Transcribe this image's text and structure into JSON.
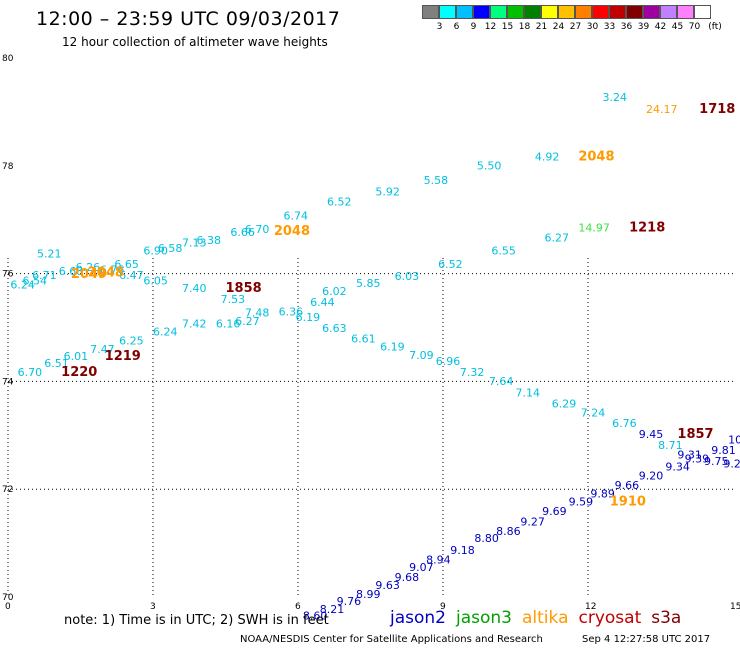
{
  "header": {
    "title": "12:00 – 23:59 UTC 09/03/2017",
    "subtitle": "12 hour collection of altimeter wave heights"
  },
  "colorbar": {
    "unit": "(ft)",
    "levels": [
      {
        "label": "",
        "color": "#808080"
      },
      {
        "label": "3",
        "color": "#00ffff"
      },
      {
        "label": "6",
        "color": "#00c0ff"
      },
      {
        "label": "9",
        "color": "#0000ff"
      },
      {
        "label": "12",
        "color": "#00ff80"
      },
      {
        "label": "15",
        "color": "#00c000"
      },
      {
        "label": "18",
        "color": "#008000"
      },
      {
        "label": "21",
        "color": "#ffff00"
      },
      {
        "label": "24",
        "color": "#ffc000"
      },
      {
        "label": "27",
        "color": "#ff8000"
      },
      {
        "label": "30",
        "color": "#ff0000"
      },
      {
        "label": "33",
        "color": "#c00000"
      },
      {
        "label": "36",
        "color": "#800000"
      },
      {
        "label": "39",
        "color": "#a000a0"
      },
      {
        "label": "42",
        "color": "#c080ff"
      },
      {
        "label": "45",
        "color": "#ff80ff"
      },
      {
        "label": "70",
        "color": "#ffffff"
      }
    ]
  },
  "axes": {
    "x_ticks": [
      "0",
      "3",
      "6",
      "9",
      "12",
      "15"
    ],
    "y_ticks": [
      "80",
      "78",
      "76",
      "74",
      "72",
      "70"
    ],
    "y_ticks_flipped": [
      {
        "label": "76",
        "value": 78
      }
    ],
    "lon_range": [
      0,
      15
    ],
    "lat_range": [
      70,
      80
    ]
  },
  "colors": {
    "jason2": "#0000c0",
    "jason3": "#00a000",
    "altika": "#ff9a00",
    "cryosat": "#c00000",
    "s3a": "#800000",
    "swh_cyan": "#00c0e0",
    "swh_green": "#40e040",
    "time_altika": "#ff9a00",
    "time_s3a": "#800000"
  },
  "chart_data": {
    "type": "scatter",
    "xlabel": "",
    "ylabel": "",
    "swh_labels": [
      {
        "text": "3.24",
        "lon": 12.3,
        "lat": 79.2,
        "c": "swh_cyan"
      },
      {
        "text": "24.17",
        "lon": 13.2,
        "lat": 78.98,
        "c": "altika"
      },
      {
        "text": "4.92",
        "lon": 10.9,
        "lat": 78.1,
        "c": "swh_cyan"
      },
      {
        "text": "5.50",
        "lon": 9.7,
        "lat": 77.93,
        "c": "swh_cyan"
      },
      {
        "text": "5.58",
        "lon": 8.6,
        "lat": 77.66,
        "c": "swh_cyan"
      },
      {
        "text": "5.92",
        "lon": 7.6,
        "lat": 77.45,
        "c": "swh_cyan"
      },
      {
        "text": "6.52",
        "lon": 6.6,
        "lat": 77.26,
        "c": "swh_cyan"
      },
      {
        "text": "6.74",
        "lon": 5.7,
        "lat": 77.0,
        "c": "swh_cyan"
      },
      {
        "text": "6.70",
        "lon": 4.9,
        "lat": 76.75,
        "c": "swh_cyan"
      },
      {
        "text": "6.66",
        "lon": 4.6,
        "lat": 76.7,
        "c": "swh_cyan"
      },
      {
        "text": "6.38",
        "lon": 3.9,
        "lat": 76.55,
        "c": "swh_cyan"
      },
      {
        "text": "7.13",
        "lon": 3.6,
        "lat": 76.5,
        "c": "swh_cyan"
      },
      {
        "text": "6.58",
        "lon": 3.1,
        "lat": 76.4,
        "c": "swh_cyan"
      },
      {
        "text": "6.90",
        "lon": 2.8,
        "lat": 76.35,
        "c": "swh_cyan"
      },
      {
        "text": "6.65",
        "lon": 2.2,
        "lat": 76.1,
        "c": "swh_cyan"
      },
      {
        "text": "6.26",
        "lon": 1.4,
        "lat": 76.05,
        "c": "swh_cyan"
      },
      {
        "text": "6.76",
        "lon": 1.9,
        "lat": 76.0,
        "c": "swh_cyan"
      },
      {
        "text": "6.68",
        "lon": 1.05,
        "lat": 75.97,
        "c": "swh_cyan"
      },
      {
        "text": "6.71",
        "lon": 0.5,
        "lat": 75.9,
        "c": "swh_cyan"
      },
      {
        "text": "6.47",
        "lon": 2.3,
        "lat": 75.9,
        "c": "swh_cyan"
      },
      {
        "text": "5.21",
        "lon": 0.6,
        "lat": 76.3,
        "c": "swh_cyan"
      },
      {
        "text": "6.54",
        "lon": 0.3,
        "lat": 75.8,
        "c": "swh_cyan"
      },
      {
        "text": "6.24",
        "lon": 0.05,
        "lat": 75.72,
        "c": "swh_cyan"
      },
      {
        "text": "14.97",
        "lon": 11.8,
        "lat": 76.78,
        "c": "swh_green"
      },
      {
        "text": "6.27",
        "lon": 11.1,
        "lat": 76.6,
        "c": "swh_cyan"
      },
      {
        "text": "6.55",
        "lon": 10.0,
        "lat": 76.35,
        "c": "swh_cyan"
      },
      {
        "text": "6.52",
        "lon": 8.9,
        "lat": 76.1,
        "c": "swh_cyan"
      },
      {
        "text": "6.03",
        "lon": 8.0,
        "lat": 75.88,
        "c": "swh_cyan"
      },
      {
        "text": "5.85",
        "lon": 7.2,
        "lat": 75.75,
        "c": "swh_cyan"
      },
      {
        "text": "6.02",
        "lon": 6.5,
        "lat": 75.6,
        "c": "swh_cyan"
      },
      {
        "text": "6.44",
        "lon": 6.25,
        "lat": 75.4,
        "c": "swh_cyan"
      },
      {
        "text": "6.36",
        "lon": 5.6,
        "lat": 75.22,
        "c": "swh_cyan"
      },
      {
        "text": "7.48",
        "lon": 4.9,
        "lat": 75.2,
        "c": "swh_cyan"
      },
      {
        "text": "6.19",
        "lon": 5.95,
        "lat": 75.12,
        "c": "swh_cyan"
      },
      {
        "text": "6.27",
        "lon": 4.7,
        "lat": 75.05,
        "c": "swh_cyan"
      },
      {
        "text": "7.53",
        "lon": 4.4,
        "lat": 75.45,
        "c": "swh_cyan"
      },
      {
        "text": "7.40",
        "lon": 3.6,
        "lat": 75.66,
        "c": "swh_cyan"
      },
      {
        "text": "6.05",
        "lon": 2.8,
        "lat": 75.8,
        "c": "swh_cyan"
      },
      {
        "text": "6.63",
        "lon": 6.5,
        "lat": 74.92,
        "c": "swh_cyan"
      },
      {
        "text": "6.61",
        "lon": 7.1,
        "lat": 74.72,
        "c": "swh_cyan"
      },
      {
        "text": "6.19",
        "lon": 7.7,
        "lat": 74.57,
        "c": "swh_cyan"
      },
      {
        "text": "7.09",
        "lon": 8.3,
        "lat": 74.42,
        "c": "swh_cyan"
      },
      {
        "text": "6.96",
        "lon": 8.85,
        "lat": 74.3,
        "c": "swh_cyan"
      },
      {
        "text": "7.32",
        "lon": 9.35,
        "lat": 74.1,
        "c": "swh_cyan"
      },
      {
        "text": "7.64",
        "lon": 9.95,
        "lat": 73.93,
        "c": "swh_cyan"
      },
      {
        "text": "7.14",
        "lon": 10.5,
        "lat": 73.72,
        "c": "swh_cyan"
      },
      {
        "text": "6.29",
        "lon": 11.25,
        "lat": 73.52,
        "c": "swh_cyan"
      },
      {
        "text": "7.24",
        "lon": 11.85,
        "lat": 73.35,
        "c": "swh_cyan"
      },
      {
        "text": "6.76",
        "lon": 12.5,
        "lat": 73.15,
        "c": "swh_cyan"
      },
      {
        "text": "9.45",
        "lon": 13.05,
        "lat": 72.95,
        "c": "jason2"
      },
      {
        "text": "8.71",
        "lon": 13.45,
        "lat": 72.75,
        "c": "swh_cyan"
      },
      {
        "text": "9.31",
        "lon": 13.85,
        "lat": 72.57,
        "c": "jason2"
      },
      {
        "text": "9.81",
        "lon": 14.55,
        "lat": 72.65,
        "c": "jason2"
      },
      {
        "text": "10",
        "lon": 14.9,
        "lat": 72.85,
        "c": "jason2"
      },
      {
        "text": "9.39",
        "lon": 14.0,
        "lat": 72.5,
        "c": "jason2"
      },
      {
        "text": "9.75",
        "lon": 14.4,
        "lat": 72.45,
        "c": "jason2"
      },
      {
        "text": "9.2",
        "lon": 14.8,
        "lat": 72.4,
        "c": "jason2"
      },
      {
        "text": "9.34",
        "lon": 13.6,
        "lat": 72.35,
        "c": "jason2"
      },
      {
        "text": "9.20",
        "lon": 13.05,
        "lat": 72.18,
        "c": "jason2"
      },
      {
        "text": "9.66",
        "lon": 12.55,
        "lat": 72.0,
        "c": "jason2"
      },
      {
        "text": "9.89",
        "lon": 12.05,
        "lat": 71.85,
        "c": "jason2"
      },
      {
        "text": "9.59",
        "lon": 11.6,
        "lat": 71.7,
        "c": "jason2"
      },
      {
        "text": "9.69",
        "lon": 11.05,
        "lat": 71.52,
        "c": "jason2"
      },
      {
        "text": "9.27",
        "lon": 10.6,
        "lat": 71.33,
        "c": "jason2"
      },
      {
        "text": "8.86",
        "lon": 10.1,
        "lat": 71.15,
        "c": "jason2"
      },
      {
        "text": "8.80",
        "lon": 9.65,
        "lat": 71.02,
        "c": "jason2"
      },
      {
        "text": "9.18",
        "lon": 9.15,
        "lat": 70.8,
        "c": "jason2"
      },
      {
        "text": "8.94",
        "lon": 8.65,
        "lat": 70.62,
        "c": "jason2"
      },
      {
        "text": "9.07",
        "lon": 8.3,
        "lat": 70.48,
        "c": "jason2"
      },
      {
        "text": "9.68",
        "lon": 8.0,
        "lat": 70.3,
        "c": "jason2"
      },
      {
        "text": "9.63",
        "lon": 7.6,
        "lat": 70.15,
        "c": "jason2"
      },
      {
        "text": "8.99",
        "lon": 7.2,
        "lat": 69.98,
        "c": "jason2"
      },
      {
        "text": "9.76",
        "lon": 6.8,
        "lat": 69.85,
        "c": "jason2"
      },
      {
        "text": "8.21",
        "lon": 6.45,
        "lat": 69.7,
        "c": "jason2"
      },
      {
        "text": "8.60",
        "lon": 6.1,
        "lat": 69.58,
        "c": "jason2"
      },
      {
        "text": "6.24",
        "lon": 3.0,
        "lat": 74.85,
        "c": "swh_cyan"
      },
      {
        "text": "7.42",
        "lon": 3.6,
        "lat": 75.0,
        "c": "swh_cyan"
      },
      {
        "text": "6.16",
        "lon": 4.3,
        "lat": 75.0,
        "c": "swh_cyan"
      },
      {
        "text": "6.25",
        "lon": 2.3,
        "lat": 74.68,
        "c": "swh_cyan"
      },
      {
        "text": "7.47",
        "lon": 1.7,
        "lat": 74.53,
        "c": "swh_cyan"
      },
      {
        "text": "6.01",
        "lon": 1.15,
        "lat": 74.4,
        "c": "swh_cyan"
      },
      {
        "text": "6.51",
        "lon": 0.75,
        "lat": 74.27,
        "c": "swh_cyan"
      },
      {
        "text": "6.70",
        "lon": 0.2,
        "lat": 74.1,
        "c": "swh_cyan"
      }
    ],
    "time_labels": [
      {
        "text": "1718",
        "lon": 14.3,
        "lat": 78.98,
        "c": "time_s3a"
      },
      {
        "text": "2048",
        "lon": 11.8,
        "lat": 78.1,
        "c": "time_altika"
      },
      {
        "text": "1218",
        "lon": 12.85,
        "lat": 76.78,
        "c": "time_s3a"
      },
      {
        "text": "2048",
        "lon": 5.5,
        "lat": 76.72,
        "c": "time_altika"
      },
      {
        "text": "2049",
        "lon": 1.3,
        "lat": 75.92,
        "c": "time_altika"
      },
      {
        "text": "2048",
        "lon": 1.65,
        "lat": 75.95,
        "c": "time_altika"
      },
      {
        "text": "1858",
        "lon": 4.5,
        "lat": 75.66,
        "c": "time_s3a"
      },
      {
        "text": "1219",
        "lon": 2.0,
        "lat": 74.4,
        "c": "time_s3a"
      },
      {
        "text": "1220",
        "lon": 1.1,
        "lat": 74.1,
        "c": "time_s3a"
      },
      {
        "text": "1857",
        "lon": 13.85,
        "lat": 72.95,
        "c": "time_s3a"
      },
      {
        "text": "1910",
        "lon": 12.45,
        "lat": 71.7,
        "c": "time_altika"
      }
    ]
  },
  "footer": {
    "note": "note:  1) Time is in UTC;  2) SWH is in feet",
    "legend": [
      {
        "label": "jason2",
        "c": "jason2"
      },
      {
        "label": "jason3",
        "c": "jason3"
      },
      {
        "label": "altika",
        "c": "altika"
      },
      {
        "label": "cryosat",
        "c": "cryosat"
      },
      {
        "label": "s3a",
        "c": "s3a"
      }
    ],
    "credit": "NOAA/NESDIS Center for Satellite Applications and Research",
    "timestamp": "Sep  4 12:27:58 UTC 2017"
  }
}
